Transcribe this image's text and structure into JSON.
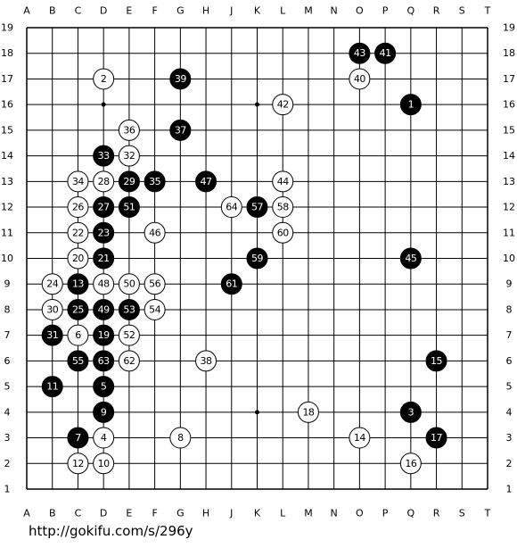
{
  "board": {
    "columns": [
      "A",
      "B",
      "C",
      "D",
      "E",
      "F",
      "G",
      "H",
      "J",
      "K",
      "L",
      "M",
      "N",
      "O",
      "P",
      "Q",
      "R",
      "S",
      "T"
    ],
    "rows": [
      19,
      18,
      17,
      16,
      15,
      14,
      13,
      12,
      11,
      10,
      9,
      8,
      7,
      6,
      5,
      4,
      3,
      2,
      1
    ],
    "stones": [
      {
        "col": "O",
        "row": 18,
        "color": "black",
        "label": 43
      },
      {
        "col": "P",
        "row": 18,
        "color": "black",
        "label": 41
      },
      {
        "col": "D",
        "row": 17,
        "color": "white",
        "label": 2
      },
      {
        "col": "G",
        "row": 17,
        "color": "black",
        "label": 39
      },
      {
        "col": "O",
        "row": 17,
        "color": "white",
        "label": 40
      },
      {
        "col": "L",
        "row": 16,
        "color": "white",
        "label": 42
      },
      {
        "col": "Q",
        "row": 16,
        "color": "black",
        "label": 1
      },
      {
        "col": "E",
        "row": 15,
        "color": "white",
        "label": 36
      },
      {
        "col": "G",
        "row": 15,
        "color": "black",
        "label": 37
      },
      {
        "col": "D",
        "row": 14,
        "color": "black",
        "label": 33
      },
      {
        "col": "E",
        "row": 14,
        "color": "white",
        "label": 32
      },
      {
        "col": "C",
        "row": 13,
        "color": "white",
        "label": 34
      },
      {
        "col": "D",
        "row": 13,
        "color": "white",
        "label": 28
      },
      {
        "col": "E",
        "row": 13,
        "color": "black",
        "label": 29
      },
      {
        "col": "F",
        "row": 13,
        "color": "black",
        "label": 35
      },
      {
        "col": "H",
        "row": 13,
        "color": "black",
        "label": 47
      },
      {
        "col": "L",
        "row": 13,
        "color": "white",
        "label": 44
      },
      {
        "col": "C",
        "row": 12,
        "color": "white",
        "label": 26
      },
      {
        "col": "D",
        "row": 12,
        "color": "black",
        "label": 27
      },
      {
        "col": "E",
        "row": 12,
        "color": "black",
        "label": 51
      },
      {
        "col": "J",
        "row": 12,
        "color": "white",
        "label": 64
      },
      {
        "col": "K",
        "row": 12,
        "color": "black",
        "label": 57
      },
      {
        "col": "L",
        "row": 12,
        "color": "white",
        "label": 58
      },
      {
        "col": "C",
        "row": 11,
        "color": "white",
        "label": 22
      },
      {
        "col": "D",
        "row": 11,
        "color": "black",
        "label": 23
      },
      {
        "col": "F",
        "row": 11,
        "color": "white",
        "label": 46
      },
      {
        "col": "L",
        "row": 11,
        "color": "white",
        "label": 60
      },
      {
        "col": "C",
        "row": 10,
        "color": "white",
        "label": 20
      },
      {
        "col": "D",
        "row": 10,
        "color": "black",
        "label": 21
      },
      {
        "col": "K",
        "row": 10,
        "color": "black",
        "label": 59
      },
      {
        "col": "Q",
        "row": 10,
        "color": "black",
        "label": 45
      },
      {
        "col": "B",
        "row": 9,
        "color": "white",
        "label": 24
      },
      {
        "col": "C",
        "row": 9,
        "color": "black",
        "label": 13
      },
      {
        "col": "D",
        "row": 9,
        "color": "white",
        "label": 48
      },
      {
        "col": "E",
        "row": 9,
        "color": "white",
        "label": 50
      },
      {
        "col": "F",
        "row": 9,
        "color": "white",
        "label": 56
      },
      {
        "col": "J",
        "row": 9,
        "color": "black",
        "label": 61
      },
      {
        "col": "B",
        "row": 8,
        "color": "white",
        "label": 30
      },
      {
        "col": "C",
        "row": 8,
        "color": "black",
        "label": 25
      },
      {
        "col": "D",
        "row": 8,
        "color": "black",
        "label": 49
      },
      {
        "col": "E",
        "row": 8,
        "color": "black",
        "label": 53
      },
      {
        "col": "F",
        "row": 8,
        "color": "white",
        "label": 54
      },
      {
        "col": "B",
        "row": 7,
        "color": "black",
        "label": 31
      },
      {
        "col": "C",
        "row": 7,
        "color": "white",
        "label": 6
      },
      {
        "col": "D",
        "row": 7,
        "color": "black",
        "label": 19
      },
      {
        "col": "E",
        "row": 7,
        "color": "white",
        "label": 52
      },
      {
        "col": "C",
        "row": 6,
        "color": "black",
        "label": 55
      },
      {
        "col": "D",
        "row": 6,
        "color": "black",
        "label": 63
      },
      {
        "col": "E",
        "row": 6,
        "color": "white",
        "label": 62
      },
      {
        "col": "H",
        "row": 6,
        "color": "white",
        "label": 38
      },
      {
        "col": "R",
        "row": 6,
        "color": "black",
        "label": 15
      },
      {
        "col": "B",
        "row": 5,
        "color": "black",
        "label": 11
      },
      {
        "col": "D",
        "row": 5,
        "color": "black",
        "label": 5
      },
      {
        "col": "D",
        "row": 4,
        "color": "black",
        "label": 9
      },
      {
        "col": "M",
        "row": 4,
        "color": "white",
        "label": 18
      },
      {
        "col": "Q",
        "row": 4,
        "color": "black",
        "label": 3
      },
      {
        "col": "C",
        "row": 3,
        "color": "black",
        "label": 7
      },
      {
        "col": "D",
        "row": 3,
        "color": "white",
        "label": 4
      },
      {
        "col": "G",
        "row": 3,
        "color": "white",
        "label": 8
      },
      {
        "col": "O",
        "row": 3,
        "color": "white",
        "label": 14
      },
      {
        "col": "R",
        "row": 3,
        "color": "black",
        "label": 17
      },
      {
        "col": "C",
        "row": 2,
        "color": "white",
        "label": 12
      },
      {
        "col": "D",
        "row": 2,
        "color": "white",
        "label": 10
      },
      {
        "col": "Q",
        "row": 2,
        "color": "white",
        "label": 16
      }
    ]
  },
  "footer": {
    "url": "http://gokifu.com/s/296y"
  }
}
